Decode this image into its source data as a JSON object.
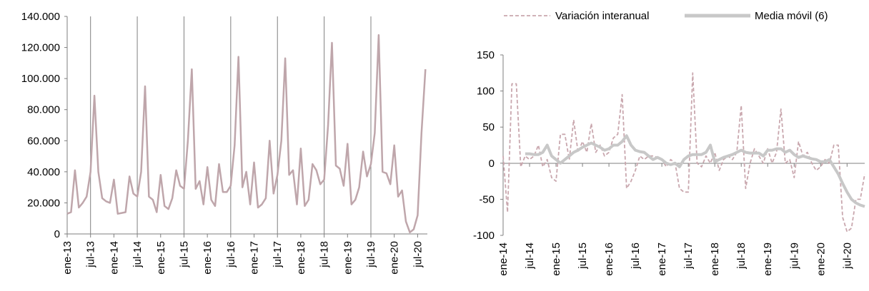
{
  "chart_data": [
    {
      "type": "line",
      "title": "",
      "xlabel": "",
      "ylabel": "",
      "ylim": [
        0,
        140000
      ],
      "y_ticks": [
        "0",
        "20.000",
        "40.000",
        "60.000",
        "80.000",
        "100.000",
        "120.000",
        "140.000"
      ],
      "x_ticks": [
        "ene-13",
        "jul-13",
        "ene-14",
        "jul-14",
        "ene-15",
        "jul-15",
        "ene-16",
        "jul-16",
        "ene-17",
        "jul-17",
        "ene-18",
        "jul-18",
        "ene-19",
        "jul-19",
        "ene-20",
        "jul-20"
      ],
      "vertical_gridlines_at": [
        "jul-13",
        "jul-14",
        "jul-15",
        "jul-16",
        "jul-17",
        "jul-18",
        "jul-19"
      ],
      "line_color": "#bfa6ab",
      "series": [
        {
          "values": [
            13000,
            14000,
            41000,
            17000,
            20000,
            24000,
            40000,
            89000,
            40000,
            23000,
            21000,
            20000,
            35000,
            13000,
            13500,
            14000,
            37000,
            26000,
            24000,
            40000,
            95000,
            24000,
            22000,
            14000,
            38000,
            18000,
            16000,
            23000,
            41000,
            31000,
            29000,
            60000,
            106000,
            29000,
            34000,
            19000,
            43000,
            22000,
            18000,
            45000,
            27000,
            27000,
            31000,
            57000,
            114000,
            30000,
            40000,
            19000,
            46000,
            17000,
            19000,
            23000,
            60000,
            26000,
            38000,
            60000,
            113000,
            38000,
            41000,
            19000,
            55000,
            18000,
            22000,
            45000,
            41000,
            32000,
            35000,
            70000,
            123000,
            44000,
            42000,
            31000,
            58000,
            19000,
            22000,
            30000,
            53000,
            37000,
            45000,
            65000,
            128000,
            40000,
            39000,
            32000,
            57000,
            24000,
            28000,
            8000,
            1000,
            3000,
            12000,
            65000,
            106000
          ]
        }
      ]
    },
    {
      "type": "line",
      "title": "",
      "xlabel": "",
      "ylabel": "",
      "ylim": [
        -100,
        150
      ],
      "y_ticks": [
        "-100",
        "-50",
        "0",
        "50",
        "100",
        "150"
      ],
      "x_ticks": [
        "ene-14",
        "jul-14",
        "ene-15",
        "jul-15",
        "ene-16",
        "jul-16",
        "ene-17",
        "jul-17",
        "ene-18",
        "jul-18",
        "ene-19",
        "jul-19",
        "ene-20",
        "jul-20"
      ],
      "legend_position": "top",
      "series": [
        {
          "name": "Variación interanual",
          "style": "dashed",
          "color": "#c9a7ae",
          "values": [
            10,
            -68,
            110,
            110,
            -5,
            10,
            5,
            10,
            25,
            -5,
            5,
            -20,
            -25,
            40,
            40,
            5,
            60,
            15,
            30,
            15,
            55,
            15,
            25,
            10,
            15,
            35,
            40,
            95,
            -35,
            -25,
            -10,
            10,
            5,
            10,
            10,
            8,
            5,
            -5,
            5,
            0,
            -35,
            -40,
            -40,
            125,
            0,
            -5,
            10,
            0,
            15,
            -10,
            5,
            10,
            5,
            15,
            80,
            -35,
            0,
            20,
            10,
            0,
            20,
            0,
            15,
            75,
            0,
            5,
            -20,
            30,
            10,
            15,
            0,
            -10,
            -5,
            5,
            0,
            25,
            25,
            -75,
            -95,
            -90,
            -50,
            -50,
            -15
          ]
        },
        {
          "name": "Media móvil (6)",
          "style": "solid",
          "color": "#c8c8c8",
          "values": [
            null,
            null,
            null,
            null,
            null,
            13,
            13,
            12,
            12,
            15,
            25,
            10,
            5,
            0,
            5,
            10,
            15,
            18,
            22,
            25,
            28,
            25,
            22,
            18,
            20,
            25,
            25,
            30,
            38,
            25,
            18,
            16,
            15,
            10,
            5,
            8,
            5,
            0,
            -2,
            0,
            -5,
            5,
            10,
            12,
            12,
            12,
            15,
            25,
            2,
            5,
            8,
            10,
            12,
            15,
            18,
            15,
            14,
            14,
            14,
            10,
            18,
            18,
            20,
            20,
            15,
            18,
            12,
            8,
            10,
            8,
            6,
            5,
            2,
            2,
            5,
            -5,
            -15,
            -28,
            -40,
            -50,
            -55,
            -58,
            -60
          ]
        }
      ]
    }
  ]
}
